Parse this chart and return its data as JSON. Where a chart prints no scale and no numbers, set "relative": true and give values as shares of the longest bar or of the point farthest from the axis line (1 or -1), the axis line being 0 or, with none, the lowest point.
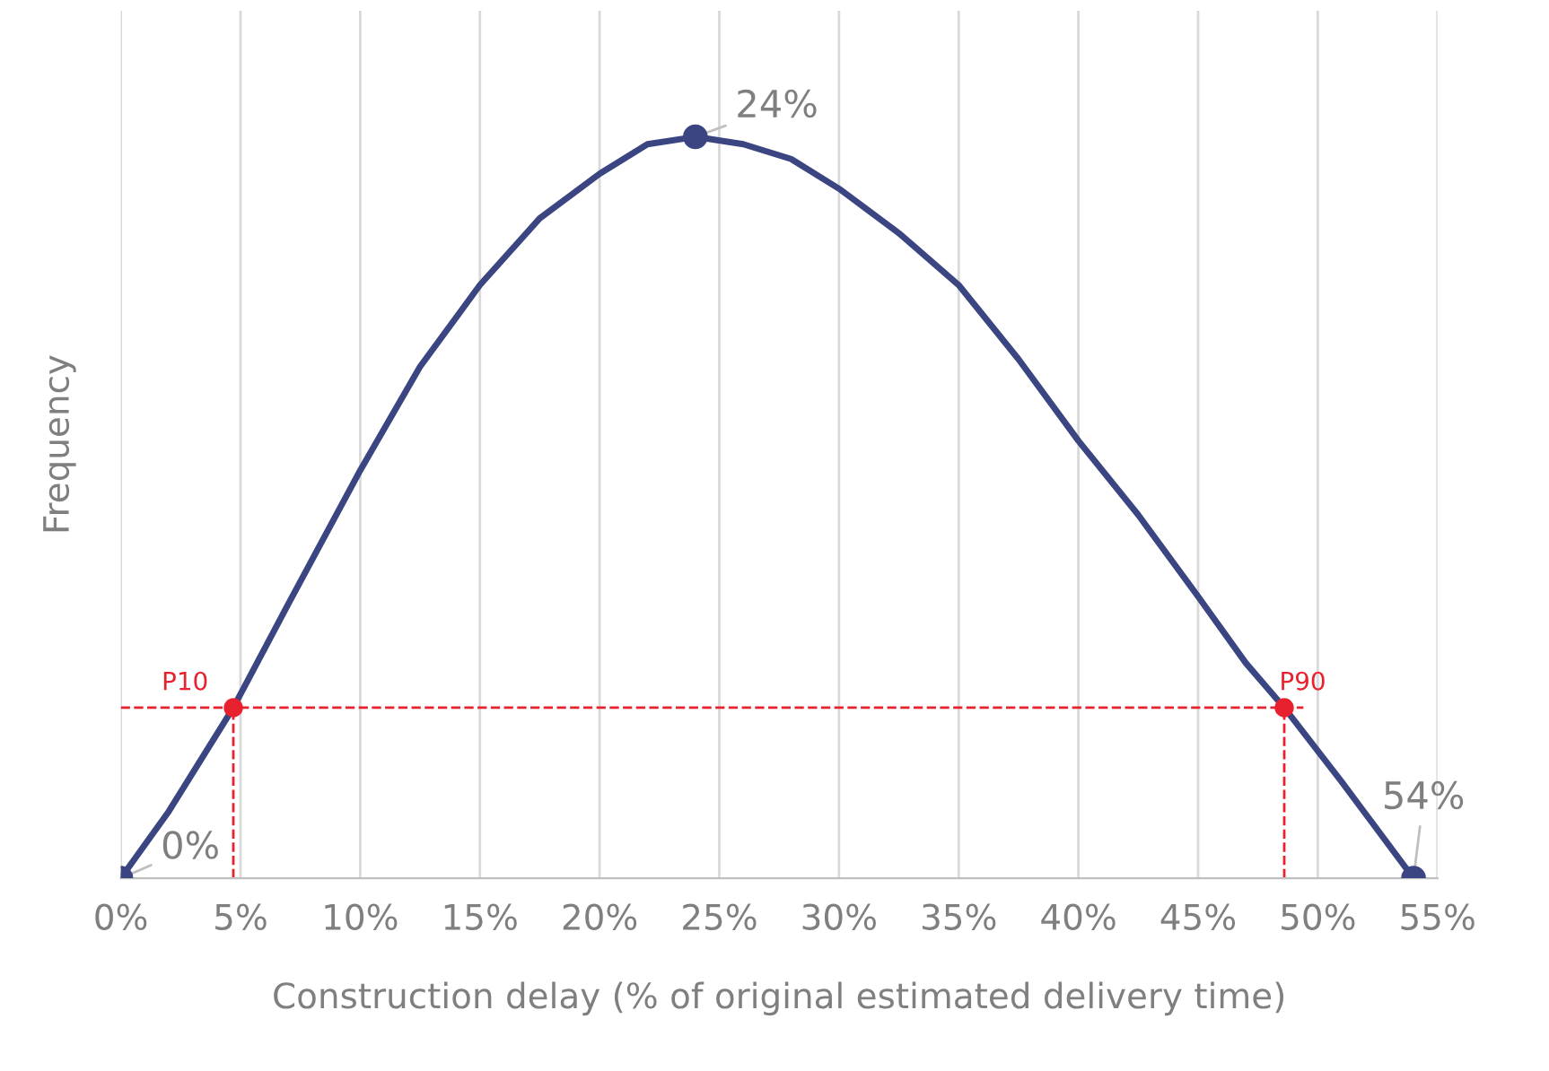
{
  "chart_data": {
    "type": "line",
    "relative": true,
    "xlabel": "Construction delay (% of original estimated delivery time)",
    "ylabel": "Frequency",
    "xlim": [
      0,
      55
    ],
    "xticks": [
      {
        "value": 0,
        "label": "0%"
      },
      {
        "value": 5,
        "label": "5%"
      },
      {
        "value": 10,
        "label": "10%"
      },
      {
        "value": 15,
        "label": "15%"
      },
      {
        "value": 20,
        "label": "20%"
      },
      {
        "value": 25,
        "label": "25%"
      },
      {
        "value": 30,
        "label": "30%"
      },
      {
        "value": 35,
        "label": "35%"
      },
      {
        "value": 40,
        "label": "40%"
      },
      {
        "value": 45,
        "label": "45%"
      },
      {
        "value": 50,
        "label": "50%"
      },
      {
        "value": 55,
        "label": "55%"
      }
    ],
    "grid": "x",
    "series": [
      {
        "color": "#3b4582",
        "x": [
          0,
          2,
          4.7,
          7,
          10,
          12.5,
          15,
          17.5,
          20,
          22,
          24,
          26,
          28,
          30,
          32.5,
          35,
          37.5,
          40,
          42.5,
          45,
          47,
          48.6,
          51,
          54
        ],
        "values": [
          0,
          0.09,
          0.23,
          0.37,
          0.55,
          0.69,
          0.8,
          0.89,
          0.95,
          0.99,
          1,
          0.99,
          0.97,
          0.93,
          0.87,
          0.8,
          0.7,
          0.59,
          0.49,
          0.38,
          0.29,
          0.23,
          0.13,
          0
        ]
      },
      {
        "type": "scatter",
        "color": "#3b4582",
        "x": [
          0,
          24,
          54
        ],
        "values": [
          0,
          1,
          0
        ]
      },
      {
        "type": "scatter",
        "color": "#e8212e",
        "x": [
          4.7,
          48.6
        ],
        "values": [
          0.23,
          0.23
        ]
      }
    ],
    "ref_lines": [
      {
        "axis": "x",
        "value": 4.7,
        "label": "P10",
        "color": "#e8212e",
        "line_style": "dashed"
      },
      {
        "axis": "x",
        "value": 48.6,
        "label": "P90",
        "color": "#e8212e",
        "line_style": "dashed"
      },
      {
        "axis": "y",
        "value": 0.23,
        "color": "#e8212e",
        "line_style": "dashed"
      }
    ],
    "annotations": [
      {
        "text": "0%",
        "x": 0,
        "y": 0
      },
      {
        "text": "24%",
        "x": 24,
        "y": 1
      },
      {
        "text": "54%",
        "x": 54,
        "y": 0
      }
    ]
  }
}
